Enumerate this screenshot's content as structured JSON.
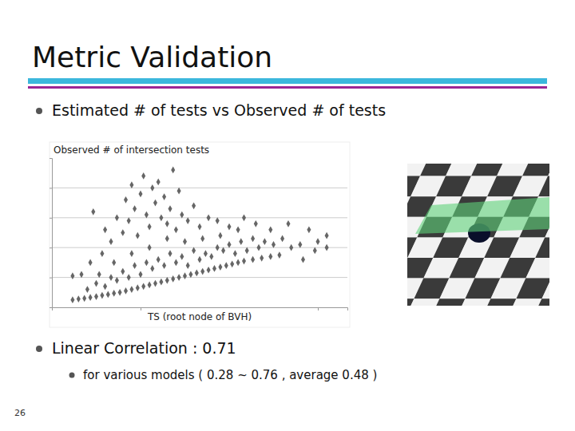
{
  "slide": {
    "title": "Metric Validation",
    "bullets": [
      {
        "text": "Estimated # of tests vs Observed # of tests"
      },
      {
        "text": "Linear Correlation : 0.71",
        "sub_bullets": [
          "for various models ( 0.28 ~ 0.76 , average 0.48 )"
        ]
      }
    ],
    "page_number": "26"
  },
  "chart_data": {
    "type": "scatter",
    "x_label": "TS (root node of BVH)",
    "y_label": "Observed # of intersection tests",
    "color": "#666666",
    "marker": "diamond",
    "xlim": [
      0,
      10
    ],
    "ylim": [
      0,
      5
    ],
    "xticks": [
      3,
      9
    ],
    "yticks": [
      1,
      2,
      3,
      4
    ],
    "grid": true,
    "tick_labels": false,
    "x": [
      0.7,
      0.9,
      1.1,
      1.3,
      1.5,
      1.7,
      1.9,
      2.1,
      2.3,
      2.5,
      2.7,
      2.9,
      3.1,
      3.3,
      3.5,
      3.7,
      3.9,
      4.1,
      4.3,
      4.5,
      4.7,
      4.9,
      5.1,
      5.3,
      5.5,
      5.7,
      5.9,
      6.1,
      6.3,
      6.5,
      6.8,
      7.1,
      7.4,
      7.7,
      1.2,
      1.5,
      1.8,
      2.0,
      2.2,
      2.4,
      2.6,
      2.8,
      3.0,
      3.2,
      3.4,
      3.6,
      3.8,
      4.0,
      4.2,
      4.4,
      4.6,
      4.8,
      5.0,
      5.2,
      5.4,
      5.6,
      5.8,
      6.0,
      6.2,
      6.4,
      6.6,
      6.8,
      7.0,
      7.2,
      7.5,
      7.8,
      8.1,
      8.4,
      8.7,
      9.0,
      9.3,
      8.0,
      7.4,
      6.9,
      6.3,
      5.7,
      5.1,
      4.5,
      3.9,
      3.3,
      2.7,
      2.1,
      1.6,
      2.4,
      2.6,
      2.8,
      2.9,
      3.0,
      3.1,
      3.2,
      3.3,
      3.4,
      3.5,
      3.6,
      3.7,
      3.8,
      3.9,
      4.0,
      4.1,
      4.2,
      4.3,
      4.4,
      4.6,
      4.8,
      5.0,
      5.3,
      5.6,
      6.0,
      6.5,
      2.2,
      2.0,
      1.8,
      1.4,
      1.7,
      1.0,
      0.7,
      1.3,
      2.5,
      2.7,
      9.3,
      8.5,
      8.9
    ],
    "values": [
      0.25,
      0.28,
      0.3,
      0.33,
      0.36,
      0.4,
      0.43,
      0.47,
      0.5,
      0.55,
      0.6,
      0.65,
      0.7,
      0.75,
      0.8,
      0.85,
      0.9,
      0.95,
      1.0,
      1.05,
      1.1,
      1.15,
      1.2,
      1.25,
      1.3,
      1.35,
      1.4,
      1.45,
      1.5,
      1.55,
      1.6,
      1.65,
      1.7,
      1.75,
      0.6,
      0.8,
      0.7,
      1.0,
      0.9,
      1.2,
      1.0,
      1.4,
      1.1,
      1.5,
      1.3,
      1.6,
      1.4,
      1.8,
      1.5,
      1.7,
      1.4,
      1.9,
      1.6,
      1.8,
      1.7,
      2.0,
      1.9,
      2.1,
      1.8,
      2.2,
      1.9,
      2.3,
      2.0,
      2.2,
      2.1,
      2.3,
      2.0,
      2.1,
      2.6,
      2.2,
      2.4,
      2.8,
      2.6,
      2.8,
      2.6,
      2.4,
      2.3,
      2.2,
      2.3,
      2.0,
      1.8,
      1.5,
      1.1,
      2.5,
      2.9,
      3.3,
      2.4,
      3.8,
      4.4,
      3.1,
      2.7,
      4.0,
      3.5,
      4.2,
      3.0,
      3.7,
      2.8,
      3.3,
      4.6,
      2.6,
      3.9,
      3.1,
      2.9,
      3.4,
      2.7,
      3.0,
      2.9,
      2.7,
      3.0,
      3.0,
      2.2,
      2.6,
      3.2,
      1.8,
      1.1,
      1.05,
      1.5,
      3.6,
      4.1,
      2.0,
      1.6,
      1.9
    ]
  }
}
